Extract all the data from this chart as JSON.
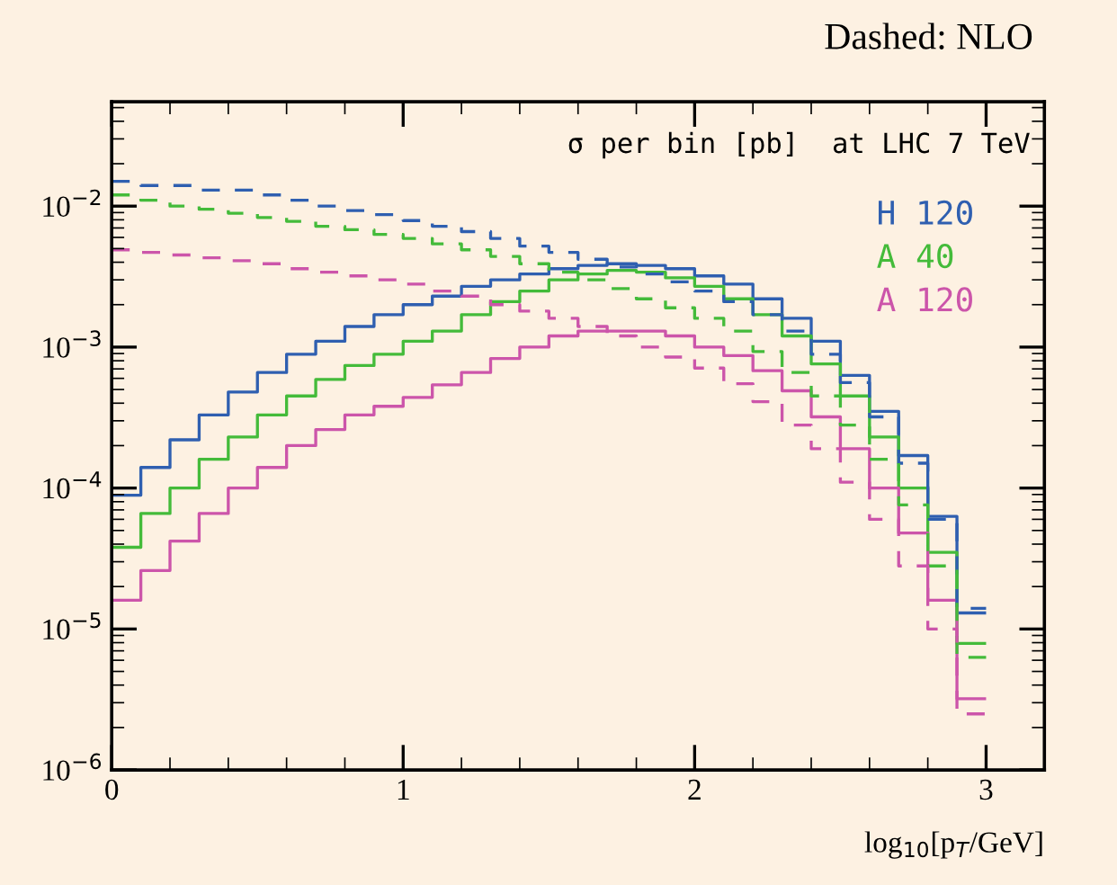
{
  "chart_data": {
    "type": "histogram",
    "title": "Dashed: NLO",
    "annotations": [
      "σ per bin [pb]  at LHC 7 TeV"
    ],
    "xlabel": "log$_{10}$[p$_{T}$/GeV]",
    "log": "y",
    "grid": false,
    "legend": "top right",
    "xlim": [
      0,
      3.2
    ],
    "xticks": [
      0,
      1,
      2,
      3
    ],
    "ylim": [
      1e-06,
      0.055
    ],
    "yticks": [
      {
        "value": 1e-06,
        "label": "10$^{−6}$"
      },
      {
        "value": 1e-05,
        "label": "10$^{−5}$"
      },
      {
        "value": 0.0001,
        "label": "10$^{−4}$"
      },
      {
        "value": 0.001,
        "label": "10$^{−3}$"
      },
      {
        "value": 0.01,
        "label": "10$^{−2}$"
      }
    ],
    "bins": [
      0,
      0.1,
      0.2,
      0.3,
      0.4,
      0.5,
      0.6,
      0.7,
      0.8,
      0.9,
      1.0,
      1.1,
      1.2,
      1.3,
      1.4,
      1.5,
      1.6,
      1.7,
      1.8,
      1.9,
      2.0,
      2.1,
      2.2,
      2.3,
      2.4,
      2.5,
      2.6,
      2.7,
      2.8,
      2.9,
      3.0
    ],
    "series": [
      {
        "name": "H 120",
        "color": "#2f5fb0",
        "line_style": "solid",
        "values": [
          8.9e-05,
          0.00014,
          0.00022,
          0.00033,
          0.00048,
          0.00066,
          0.00089,
          0.0011,
          0.0014,
          0.0017,
          0.002,
          0.0023,
          0.0027,
          0.003,
          0.0033,
          0.0036,
          0.0038,
          0.0039,
          0.0038,
          0.0036,
          0.0032,
          0.0028,
          0.0022,
          0.0016,
          0.0011,
          0.00063,
          0.00035,
          0.00017,
          6.3e-05,
          1.3e-05
        ]
      },
      {
        "name": "A 40",
        "color": "#44bb3a",
        "line_style": "solid",
        "values": [
          3.8e-05,
          6.6e-05,
          0.0001,
          0.00016,
          0.00023,
          0.00033,
          0.00045,
          0.00059,
          0.00074,
          0.00089,
          0.0011,
          0.0013,
          0.0017,
          0.0021,
          0.0025,
          0.003,
          0.0033,
          0.0035,
          0.0034,
          0.0031,
          0.0027,
          0.0022,
          0.0017,
          0.0012,
          0.00076,
          0.00045,
          0.00023,
          0.0001,
          3.5e-05,
          7.9e-06
        ]
      },
      {
        "name": "A 120",
        "color": "#cc55aa",
        "line_style": "solid",
        "values": [
          1.6e-05,
          2.6e-05,
          4.2e-05,
          6.6e-05,
          0.0001,
          0.00014,
          0.0002,
          0.00026,
          0.00033,
          0.00038,
          0.00044,
          0.00054,
          0.00066,
          0.00083,
          0.001,
          0.0012,
          0.0013,
          0.0013,
          0.0013,
          0.0012,
          0.001,
          0.00087,
          0.00068,
          0.00049,
          0.00032,
          0.00019,
          0.0001,
          4.8e-05,
          1.6e-05,
          3.2e-06
        ]
      },
      {
        "color": "#2f5fb0",
        "line_style": "dashed",
        "values": [
          0.015,
          0.014,
          0.014,
          0.013,
          0.013,
          0.012,
          0.011,
          0.01,
          0.0093,
          0.0087,
          0.0079,
          0.0072,
          0.0066,
          0.0059,
          0.0052,
          0.0047,
          0.0042,
          0.0037,
          0.0033,
          0.0029,
          0.0025,
          0.0021,
          0.0017,
          0.0013,
          0.00089,
          0.00056,
          0.00032,
          0.00015,
          6e-05,
          1.4e-05
        ]
      },
      {
        "color": "#44bb3a",
        "line_style": "dashed",
        "values": [
          0.012,
          0.011,
          0.01,
          0.0095,
          0.0089,
          0.0083,
          0.0078,
          0.0072,
          0.0068,
          0.0063,
          0.0059,
          0.0054,
          0.0049,
          0.0044,
          0.0039,
          0.0034,
          0.003,
          0.0026,
          0.0022,
          0.0019,
          0.0016,
          0.0013,
          0.00093,
          0.00066,
          0.00045,
          0.00028,
          0.00016,
          7.6e-05,
          2.8e-05,
          6.3e-06
        ]
      },
      {
        "color": "#cc55aa",
        "line_style": "dashed",
        "values": [
          0.0049,
          0.0047,
          0.0045,
          0.0043,
          0.0041,
          0.0039,
          0.0036,
          0.0034,
          0.0032,
          0.003,
          0.0028,
          0.0025,
          0.0023,
          0.002,
          0.0018,
          0.0016,
          0.0014,
          0.0012,
          0.001,
          0.00085,
          0.00071,
          0.00055,
          0.00041,
          0.00028,
          0.00019,
          0.00011,
          6e-05,
          2.8e-05,
          1e-05,
          2.5e-06
        ]
      }
    ]
  }
}
